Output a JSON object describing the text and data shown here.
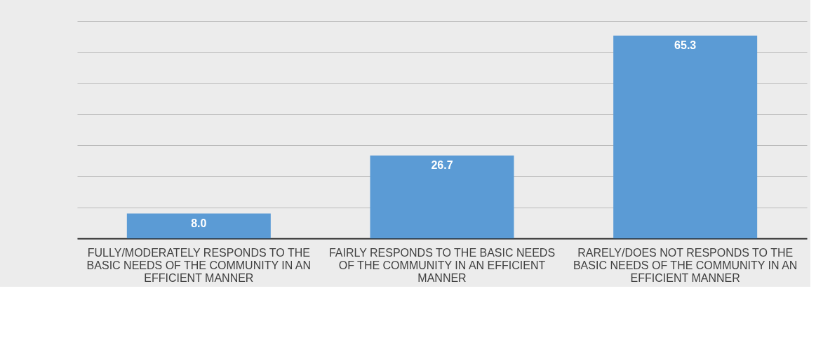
{
  "chart_data": {
    "type": "bar",
    "categories": [
      "FULLY/MODERATELY RESPONDS TO THE BASIC NEEDS OF THE COMMUNITY IN AN EFFICIENT MANNER",
      "FAIRLY RESPONDS TO THE BASIC NEEDS OF THE COMMUNITY IN AN EFFICIENT MANNER",
      "RARELY/DOES NOT RESPONDS TO THE BASIC NEEDS OF THE COMMUNITY IN AN EFFICIENT MANNER"
    ],
    "values": [
      8.0,
      26.7,
      65.3
    ],
    "value_labels": [
      "8.0",
      "26.7",
      "65.3"
    ],
    "color": "#5b9bd5",
    "ylim": [
      0,
      70
    ],
    "yticks": [
      {
        "value": 0,
        "label": null
      },
      {
        "value": 10,
        "label": null
      },
      {
        "value": 20,
        "label": null
      },
      {
        "value": 30,
        "label": null
      },
      {
        "value": 40,
        "label": null
      },
      {
        "value": 50,
        "label": null
      },
      {
        "value": 60,
        "label": null
      },
      {
        "value": 70,
        "label": null
      }
    ],
    "grid": "y",
    "tick_labels": "x"
  }
}
